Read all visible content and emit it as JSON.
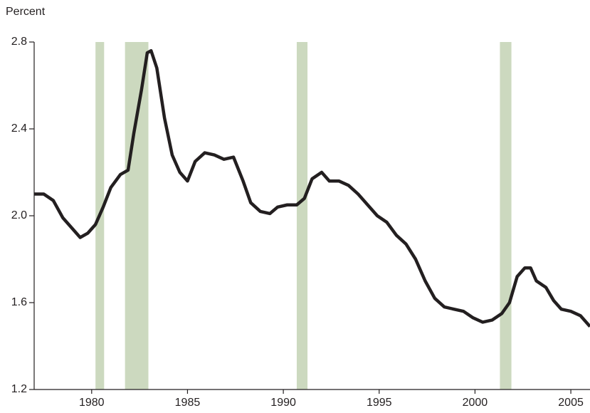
{
  "chart_data": {
    "type": "line",
    "y_label": "Percent",
    "xlim": [
      1977,
      2006
    ],
    "xticks": [
      1980,
      1985,
      1990,
      1995,
      2000,
      2005
    ],
    "ylim": [
      1.2,
      2.8
    ],
    "yticks": [
      1.2,
      1.6,
      {
        "value": 2,
        "label": "2.0"
      },
      2.4,
      2.8
    ],
    "shaded_regions": [
      [
        1980.2,
        1980.65
      ],
      [
        1981.74,
        1982.96
      ],
      [
        1990.7,
        1991.26
      ],
      [
        2001.3,
        2001.9
      ]
    ],
    "shade_color": "#ccd9bf",
    "series": [
      {
        "color": "#231f20",
        "x": [
          1977.0,
          1977.5,
          1978.0,
          1978.5,
          1979.0,
          1979.4,
          1979.8,
          1980.2,
          1980.6,
          1981.0,
          1981.5,
          1981.9,
          1982.2,
          1982.6,
          1982.9,
          1983.1,
          1983.4,
          1983.8,
          1984.2,
          1984.6,
          1985.0,
          1985.4,
          1985.9,
          1986.4,
          1986.9,
          1987.4,
          1987.9,
          1988.3,
          1988.8,
          1989.3,
          1989.7,
          1990.2,
          1990.7,
          1991.1,
          1991.5,
          1992.0,
          1992.4,
          1992.9,
          1993.4,
          1993.9,
          1994.4,
          1994.9,
          1995.4,
          1995.9,
          1996.4,
          1996.9,
          1997.4,
          1997.9,
          1998.4,
          1998.9,
          1999.4,
          1999.9,
          2000.4,
          2000.9,
          2001.4,
          2001.8,
          2002.2,
          2002.6,
          2002.9,
          2003.2,
          2003.7,
          2004.1,
          2004.5,
          2005.0,
          2005.5,
          2006.0
        ],
        "values": [
          2.1,
          2.1,
          2.07,
          1.99,
          1.94,
          1.9,
          1.92,
          1.96,
          2.04,
          2.13,
          2.19,
          2.21,
          2.38,
          2.58,
          2.75,
          2.76,
          2.68,
          2.45,
          2.28,
          2.2,
          2.16,
          2.25,
          2.29,
          2.28,
          2.26,
          2.27,
          2.16,
          2.06,
          2.02,
          2.01,
          2.04,
          2.05,
          2.05,
          2.08,
          2.17,
          2.2,
          2.16,
          2.16,
          2.14,
          2.1,
          2.05,
          2.0,
          1.97,
          1.91,
          1.87,
          1.8,
          1.7,
          1.62,
          1.58,
          1.57,
          1.56,
          1.53,
          1.51,
          1.52,
          1.55,
          1.6,
          1.72,
          1.76,
          1.76,
          1.7,
          1.67,
          1.61,
          1.57,
          1.56,
          1.54,
          1.49
        ]
      }
    ]
  }
}
